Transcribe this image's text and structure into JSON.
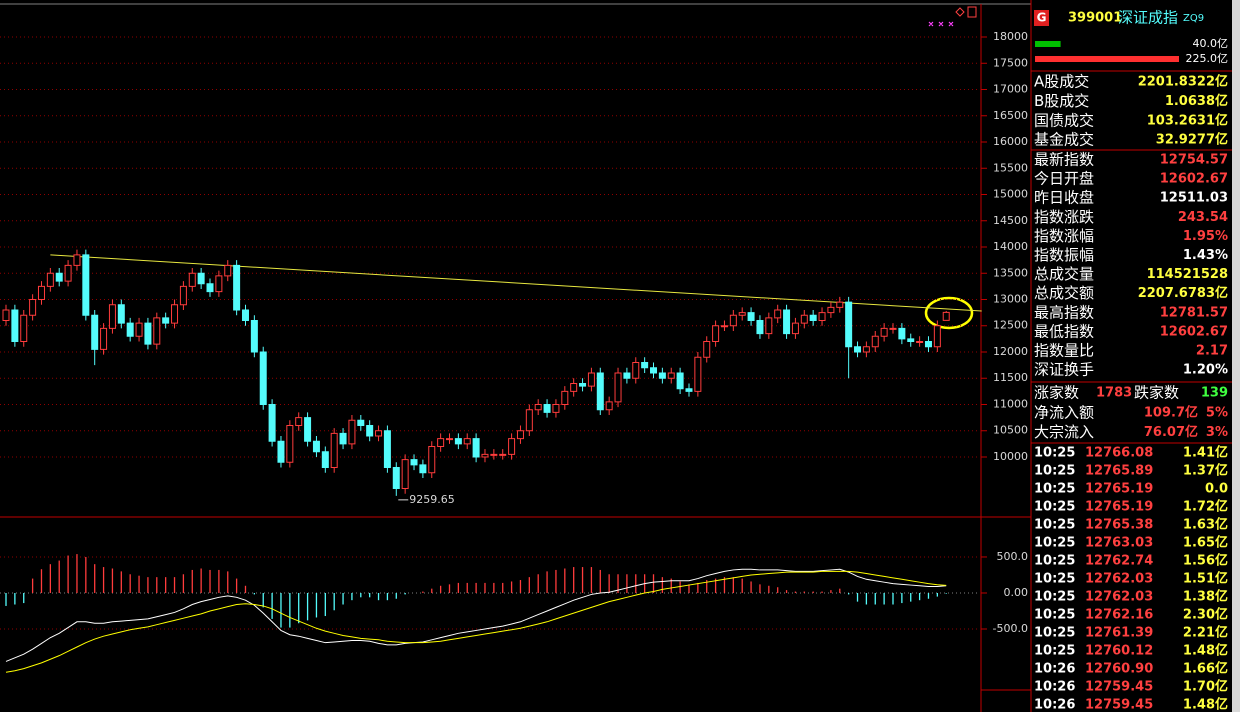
{
  "chart_data": [
    {
      "type": "candlestick",
      "ylim": [
        8857,
        18705
      ],
      "yticks": [
        10000,
        10500,
        11000,
        11500,
        12000,
        12500,
        13000,
        13500,
        14000,
        14500,
        15000,
        15500,
        16000,
        16500,
        17000,
        17500,
        18000
      ],
      "grid": true,
      "up_color": "#ff3c3c",
      "down_color": "#54fcfc",
      "open": [
        12600,
        12800,
        12200,
        12700,
        13000,
        13250,
        13500,
        13350,
        13650,
        13850,
        12700,
        12050,
        12450,
        12900,
        12550,
        12300,
        12550,
        12150,
        12650,
        12550,
        12900,
        13250,
        13500,
        13300,
        13150,
        13450,
        13650,
        12800,
        12600,
        12000,
        11000,
        10300,
        9900,
        10600,
        10750,
        10300,
        10100,
        9800,
        10450,
        10250,
        10700,
        10600,
        10400,
        10500,
        9800,
        9400,
        9950,
        9850,
        9700,
        10200,
        10350,
        10350,
        10250,
        10350,
        10000,
        10050,
        10050,
        10050,
        10350,
        10500,
        10900,
        11000,
        10850,
        11000,
        11250,
        11400,
        11350,
        11600,
        10900,
        11050,
        11600,
        11500,
        11800,
        11700,
        11600,
        11500,
        11600,
        11300,
        11250,
        11900,
        12200,
        12500,
        12500,
        12700,
        12750,
        12600,
        12350,
        12650,
        12800,
        12350,
        12550,
        12700,
        12600,
        12750,
        12850,
        12950,
        12100,
        12000,
        12100,
        12300,
        12450,
        12450,
        12250,
        12200,
        12200,
        12100,
        12602.67
      ],
      "high": [
        12900,
        12900,
        12800,
        13100,
        13350,
        13600,
        13600,
        13750,
        13950,
        13950,
        12800,
        12550,
        13000,
        13000,
        12650,
        12650,
        12650,
        12750,
        12750,
        13000,
        13350,
        13600,
        13600,
        13400,
        13550,
        13750,
        13750,
        12900,
        12700,
        12100,
        11100,
        10400,
        10700,
        10850,
        10850,
        10400,
        10200,
        10550,
        10550,
        10800,
        10800,
        10700,
        10600,
        10600,
        9900,
        10050,
        10050,
        9950,
        10300,
        10450,
        10450,
        10450,
        10450,
        10450,
        10150,
        10150,
        10150,
        10450,
        10600,
        11000,
        11100,
        11100,
        11100,
        11350,
        11500,
        11500,
        11700,
        11700,
        11150,
        11700,
        11700,
        11900,
        11900,
        11800,
        11700,
        11700,
        11700,
        11400,
        12000,
        12300,
        12600,
        12600,
        12800,
        12850,
        12850,
        12700,
        12750,
        12900,
        12900,
        12650,
        12800,
        12800,
        12850,
        12950,
        13050,
        13050,
        12200,
        12200,
        12400,
        12550,
        12550,
        12550,
        12350,
        12300,
        12300,
        12600,
        12781.57
      ],
      "low": [
        12500,
        12100,
        12100,
        12600,
        12900,
        13150,
        13250,
        13250,
        13550,
        12600,
        11750,
        11950,
        12350,
        12450,
        12200,
        12200,
        12050,
        12050,
        12450,
        12450,
        12800,
        13150,
        13200,
        13050,
        13050,
        13350,
        12700,
        12500,
        11900,
        10900,
        10200,
        9800,
        9800,
        10500,
        10200,
        10000,
        9700,
        9700,
        10150,
        10150,
        10500,
        10300,
        10300,
        9700,
        9259.65,
        9300,
        9750,
        9600,
        9600,
        10100,
        10250,
        10150,
        10150,
        9900,
        9900,
        9950,
        9950,
        9950,
        10250,
        10400,
        10800,
        10750,
        10750,
        10900,
        11150,
        11250,
        11250,
        10800,
        10800,
        10950,
        11400,
        11400,
        11600,
        11500,
        11400,
        11400,
        11200,
        11150,
        11150,
        11800,
        12100,
        12400,
        12400,
        12600,
        12500,
        12250,
        12250,
        12550,
        12250,
        12250,
        12450,
        12500,
        12500,
        12650,
        12750,
        11500,
        11900,
        11900,
        12000,
        12200,
        12350,
        12150,
        12100,
        12100,
        12000,
        12000,
        12602.67
      ],
      "close": [
        12800,
        12200,
        12700,
        13000,
        13250,
        13500,
        13350,
        13650,
        13850,
        12700,
        12050,
        12450,
        12900,
        12550,
        12300,
        12550,
        12150,
        12650,
        12550,
        12900,
        13250,
        13500,
        13300,
        13150,
        13450,
        13650,
        12800,
        12600,
        12000,
        11000,
        10300,
        9900,
        10600,
        10750,
        10300,
        10100,
        9800,
        10450,
        10250,
        10700,
        10600,
        10400,
        10500,
        9800,
        9400,
        9950,
        9850,
        9700,
        10200,
        10350,
        10350,
        10250,
        10350,
        10000,
        10050,
        10050,
        10050,
        10350,
        10500,
        10900,
        11000,
        10850,
        11000,
        11250,
        11400,
        11350,
        11600,
        10900,
        11050,
        11600,
        11500,
        11800,
        11700,
        11600,
        11500,
        11600,
        11300,
        11250,
        11900,
        12200,
        12500,
        12500,
        12700,
        12750,
        12600,
        12350,
        12650,
        12800,
        12350,
        12550,
        12700,
        12600,
        12750,
        12850,
        12950,
        12100,
        12000,
        12100,
        12300,
        12450,
        12450,
        12250,
        12200,
        12200,
        12100,
        12500,
        12754.57
      ],
      "trendline": {
        "x": [
          5,
          110
        ],
        "values": [
          13850,
          12780
        ],
        "color": "#e8e840"
      }
    },
    {
      "type": "macd",
      "ylim": [
        -1347,
        1055
      ],
      "yticks": [
        {
          "value": 500,
          "label": "500.0"
        },
        {
          "value": 0,
          "label": "0.00"
        },
        {
          "value": -500,
          "label": "-500.0"
        }
      ],
      "grid": true,
      "series": [
        {
          "type": "bar",
          "color": "#ff3c3c",
          "negative_color": "#54fcfc",
          "values": [
            -180,
            -160,
            -140,
            200,
            330,
            400,
            450,
            520,
            540,
            500,
            400,
            360,
            340,
            300,
            260,
            240,
            220,
            220,
            220,
            220,
            260,
            320,
            340,
            320,
            320,
            300,
            200,
            100,
            -20,
            -200,
            -360,
            -480,
            -480,
            -420,
            -380,
            -340,
            -320,
            -240,
            -160,
            -100,
            -60,
            -60,
            -100,
            -100,
            -80,
            -20,
            0,
            20,
            60,
            100,
            120,
            140,
            140,
            140,
            140,
            140,
            140,
            160,
            180,
            220,
            260,
            300,
            320,
            340,
            360,
            360,
            360,
            320,
            260,
            260,
            260,
            260,
            260,
            260,
            220,
            200,
            160,
            120,
            140,
            180,
            200,
            220,
            220,
            200,
            160,
            120,
            100,
            80,
            40,
            20,
            20,
            20,
            20,
            40,
            60,
            -20,
            -120,
            -160,
            -160,
            -160,
            -160,
            -140,
            -120,
            -100,
            -80,
            -50,
            -10
          ]
        },
        {
          "type": "line",
          "color": "#ffffff",
          "values": [
            -950,
            -900,
            -850,
            -780,
            -700,
            -620,
            -560,
            -480,
            -400,
            -400,
            -420,
            -420,
            -400,
            -390,
            -380,
            -370,
            -360,
            -330,
            -300,
            -270,
            -220,
            -160,
            -120,
            -90,
            -60,
            -40,
            -60,
            -100,
            -170,
            -280,
            -400,
            -520,
            -580,
            -600,
            -630,
            -660,
            -690,
            -680,
            -670,
            -660,
            -660,
            -670,
            -700,
            -720,
            -720,
            -700,
            -690,
            -680,
            -650,
            -620,
            -590,
            -560,
            -540,
            -520,
            -500,
            -480,
            -460,
            -430,
            -400,
            -350,
            -300,
            -250,
            -200,
            -150,
            -100,
            -60,
            -20,
            0,
            10,
            40,
            70,
            100,
            130,
            150,
            160,
            170,
            170,
            170,
            200,
            240,
            270,
            300,
            320,
            330,
            330,
            320,
            320,
            320,
            310,
            300,
            300,
            300,
            310,
            320,
            330,
            290,
            230,
            190,
            170,
            150,
            130,
            120,
            110,
            100,
            90,
            90,
            100
          ]
        },
        {
          "type": "line",
          "color": "#ffff00",
          "values": [
            -1100,
            -1080,
            -1050,
            -1010,
            -970,
            -920,
            -870,
            -810,
            -750,
            -690,
            -640,
            -600,
            -570,
            -540,
            -510,
            -490,
            -470,
            -440,
            -410,
            -380,
            -350,
            -320,
            -290,
            -250,
            -220,
            -190,
            -160,
            -150,
            -160,
            -180,
            -220,
            -280,
            -340,
            -390,
            -440,
            -490,
            -530,
            -560,
            -590,
            -610,
            -630,
            -640,
            -650,
            -670,
            -680,
            -690,
            -690,
            -690,
            -680,
            -670,
            -650,
            -630,
            -610,
            -590,
            -570,
            -550,
            -530,
            -510,
            -490,
            -460,
            -430,
            -400,
            -360,
            -320,
            -280,
            -240,
            -200,
            -160,
            -120,
            -90,
            -60,
            -30,
            0,
            20,
            50,
            70,
            90,
            110,
            130,
            150,
            170,
            190,
            210,
            230,
            250,
            260,
            270,
            280,
            290,
            290,
            290,
            290,
            300,
            300,
            300,
            300,
            290,
            270,
            250,
            230,
            210,
            190,
            170,
            150,
            130,
            115,
            105
          ]
        }
      ]
    }
  ],
  "panel": {
    "header": {
      "badge": "G",
      "code": "399001",
      "name": "深证成指",
      "suffix": "ZQ9"
    },
    "volume_bars": [
      {
        "value": 40,
        "label": "40.0亿",
        "color": "#00c000"
      },
      {
        "value": 225,
        "label": "225.0亿",
        "color": "#ff3030"
      }
    ],
    "turnover": [
      {
        "label": "A股成交",
        "value": "2201.8322亿",
        "color": "#ffff40"
      },
      {
        "label": "B股成交",
        "value": "1.0638亿",
        "color": "#ffff40"
      },
      {
        "label": "国债成交",
        "value": "103.2631亿",
        "color": "#ffff40"
      },
      {
        "label": "基金成交",
        "value": "32.9277亿",
        "color": "#ffff40"
      }
    ],
    "index": [
      {
        "label": "最新指数",
        "value": "12754.57",
        "color": "#ff4040"
      },
      {
        "label": "今日开盘",
        "value": "12602.67",
        "color": "#ff4040"
      },
      {
        "label": "昨日收盘",
        "value": "12511.03",
        "color": "#ffffff"
      },
      {
        "label": "指数涨跌",
        "value": "243.54",
        "color": "#ff4040"
      },
      {
        "label": "指数涨幅",
        "value": "1.95%",
        "color": "#ff4040"
      },
      {
        "label": "指数振幅",
        "value": "1.43%",
        "color": "#ffffff"
      },
      {
        "label": "总成交量",
        "value": "114521528",
        "color": "#ffff40"
      },
      {
        "label": "总成交额",
        "value": "2207.6783亿",
        "color": "#ffff40"
      },
      {
        "label": "最高指数",
        "value": "12781.57",
        "color": "#ff4040"
      },
      {
        "label": "最低指数",
        "value": "12602.67",
        "color": "#ff4040"
      },
      {
        "label": "指数量比",
        "value": "2.17",
        "color": "#ff4040"
      },
      {
        "label": "深证换手",
        "value": "1.20%",
        "color": "#ffffff"
      }
    ],
    "breadth": [
      {
        "label": "涨家数",
        "value": "1783",
        "color": "#ff4040"
      },
      {
        "label": "跌家数",
        "value": "139",
        "color": "#40ff40"
      }
    ],
    "flows": [
      {
        "label": "净流入额",
        "value": "109.7亿",
        "pct": "5%"
      },
      {
        "label": "大宗流入",
        "value": "76.07亿",
        "pct": "3%"
      }
    ],
    "ticks": [
      [
        "10:25",
        "12766.08",
        "1.41亿"
      ],
      [
        "10:25",
        "12765.89",
        "1.37亿"
      ],
      [
        "10:25",
        "12765.19",
        "0.0"
      ],
      [
        "10:25",
        "12765.19",
        "1.72亿"
      ],
      [
        "10:25",
        "12765.38",
        "1.63亿"
      ],
      [
        "10:25",
        "12763.03",
        "1.65亿"
      ],
      [
        "10:25",
        "12762.74",
        "1.56亿"
      ],
      [
        "10:25",
        "12762.03",
        "1.51亿"
      ],
      [
        "10:25",
        "12762.03",
        "1.38亿"
      ],
      [
        "10:25",
        "12762.16",
        "2.30亿"
      ],
      [
        "10:25",
        "12761.39",
        "2.21亿"
      ],
      [
        "10:25",
        "12760.12",
        "1.48亿"
      ],
      [
        "10:26",
        "12760.90",
        "1.66亿"
      ],
      [
        "10:26",
        "12759.45",
        "1.70亿"
      ],
      [
        "10:26",
        "12759.45",
        "1.48亿"
      ]
    ]
  }
}
